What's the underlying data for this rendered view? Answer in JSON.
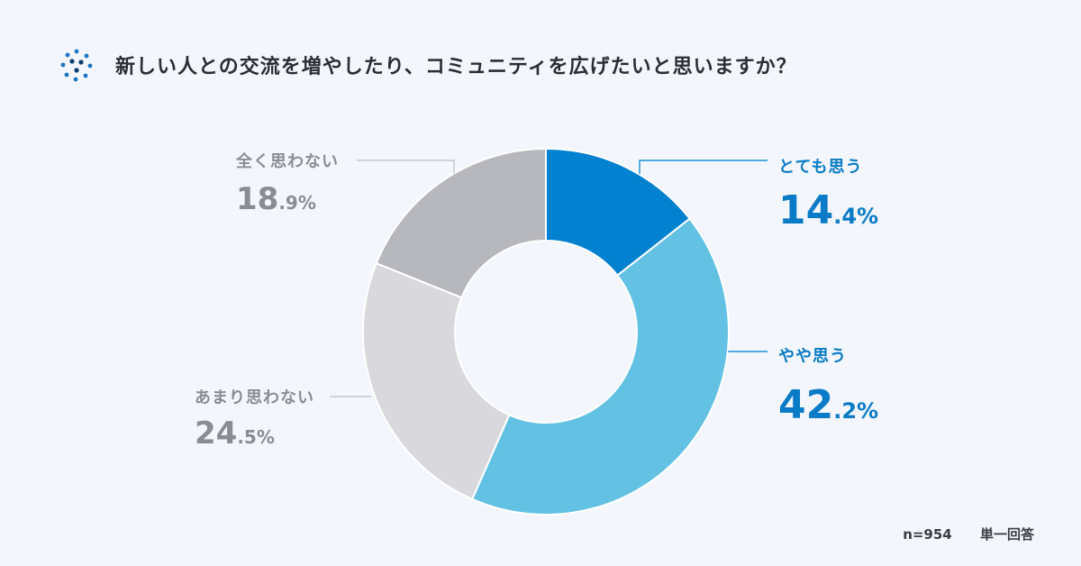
{
  "header": {
    "question": "新しい人との交流を増やしたり、コミュニティを広げたいと思いますか？"
  },
  "footer": {
    "sample": "n=954",
    "answer_type": "単一回答"
  },
  "colors": {
    "series": [
      "#0181d0",
      "#63c2e3",
      "#d9d9dd",
      "#b7b8bd"
    ],
    "blue_text": "#0a7bc6",
    "gray_text": "#8b8c91"
  },
  "chart_data": {
    "type": "pie",
    "donut": true,
    "title": "",
    "categories": [
      "とても思う",
      "やや思う",
      "あまり思わない",
      "全く思わない"
    ],
    "values": [
      14.4,
      42.2,
      24.5,
      18.9
    ],
    "display": [
      {
        "int": "14",
        "dec": ".4",
        "unit": "%"
      },
      {
        "int": "42",
        "dec": ".2",
        "unit": "%"
      },
      {
        "int": "24",
        "dec": ".5",
        "unit": "%"
      },
      {
        "int": "18",
        "dec": ".9",
        "unit": "%"
      }
    ]
  }
}
